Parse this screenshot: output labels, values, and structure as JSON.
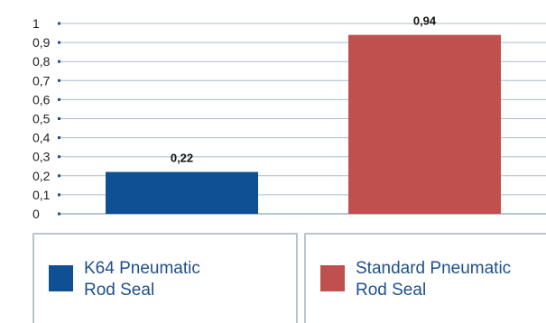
{
  "chart_data": {
    "type": "bar",
    "categories": [
      "K64 Pneumatic Rod Seal",
      "Standard Pneumatic Rod Seal"
    ],
    "values": [
      0.22,
      0.94
    ],
    "value_labels": [
      "0,22",
      "0,94"
    ],
    "colors": [
      "#0f4f94",
      "#c0504d"
    ],
    "ylim": [
      0,
      1
    ],
    "yticks": [
      {
        "value": 0,
        "label": "0"
      },
      {
        "value": 0.1,
        "label": "0,1"
      },
      {
        "value": 0.2,
        "label": "0,2"
      },
      {
        "value": 0.3,
        "label": "0,3"
      },
      {
        "value": 0.4,
        "label": "0,4"
      },
      {
        "value": 0.5,
        "label": "0,5"
      },
      {
        "value": 0.6,
        "label": "0,6"
      },
      {
        "value": 0.7,
        "label": "0,7"
      },
      {
        "value": 0.8,
        "label": "0,8"
      },
      {
        "value": 0.9,
        "label": "0,9"
      },
      {
        "value": 1,
        "label": "1"
      }
    ],
    "grid": true,
    "legend_position": "bottom",
    "legend": [
      {
        "line1": "K64 Pneumatic",
        "line2": "Rod Seal",
        "color": "#0f4f94"
      },
      {
        "line1": "Standard Pneumatic",
        "line2": "Rod Seal",
        "color": "#c0504d"
      }
    ],
    "title": "",
    "xlabel": "",
    "ylabel": ""
  }
}
